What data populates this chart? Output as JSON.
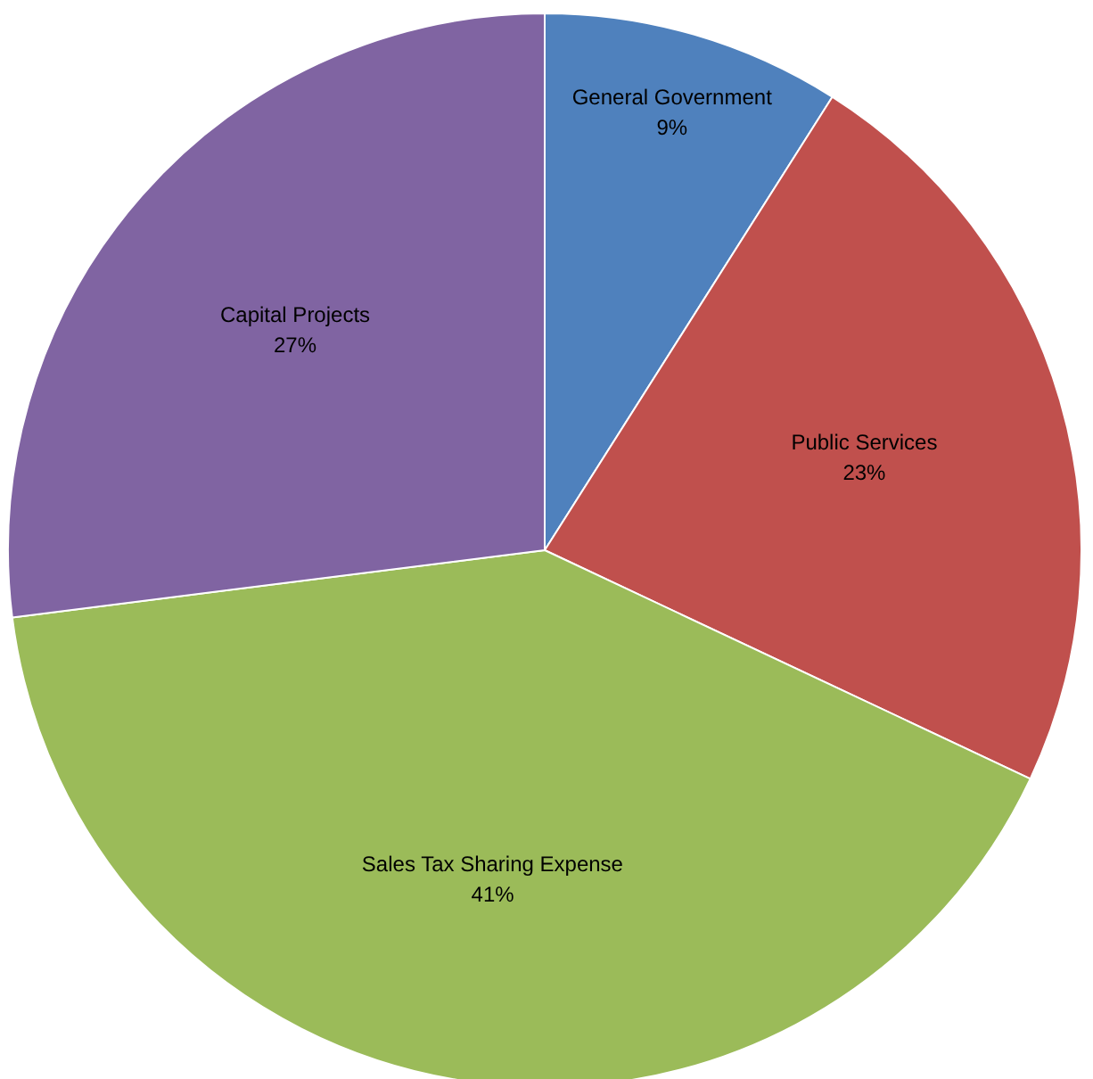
{
  "chart_data": {
    "type": "pie",
    "categories": [
      "General Government",
      "Public Services",
      "Sales Tax Sharing Expense",
      "Capital Projects"
    ],
    "values": [
      9,
      23,
      41,
      27
    ],
    "colors": [
      "#4f81bd",
      "#c0504d",
      "#9bbb59",
      "#8064a2"
    ],
    "value_labels": [
      "9%",
      "23%",
      "41%",
      "27%"
    ]
  }
}
